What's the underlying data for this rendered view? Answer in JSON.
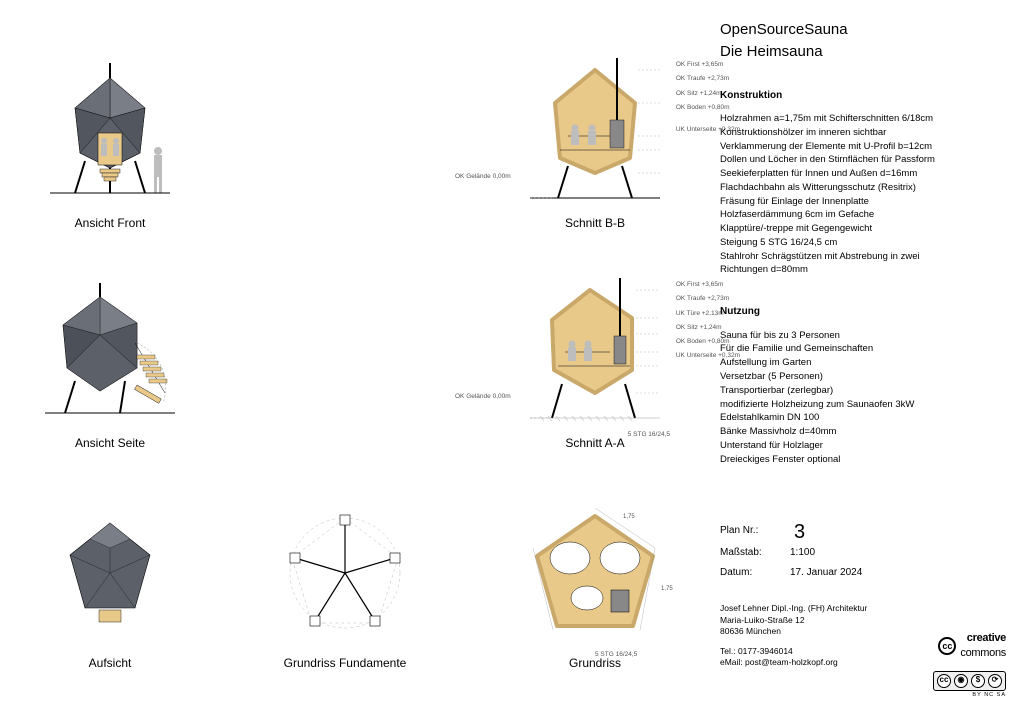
{
  "title": "OpenSourceSauna",
  "subtitle": "Die Heimsauna",
  "captions": {
    "front": "Ansicht Front",
    "side": "Ansicht Seite",
    "top": "Aufsicht",
    "sectionBB": "Schnitt B-B",
    "sectionAA": "Schnitt A-A",
    "foundation": "Grundriss Fundamente",
    "plan": "Grundriss"
  },
  "dimensions": {
    "first": "OK First +3,65m",
    "traufe": "OK Traufe +2,73m",
    "tuere": "UK Türe +2,13m",
    "sitz": "OK Sitz +1,24m",
    "boden": "OK Boden +0,80m",
    "gelaende": "OK Gelände 0,00m",
    "unterseite": "UK Unterseite +0,32m",
    "stg": "5 STG 16/24,5"
  },
  "sections": {
    "construction": {
      "heading": "Konstruktion",
      "lines": [
        "Holzrahmen a=1,75m mit Schifterschnitten 6/18cm",
        "Konstruktionshölzer im inneren sichtbar",
        "Verklammerung der Elemente mit U-Profil b=12cm",
        "Dollen und Löcher in den Stirnflächen für Passform",
        "Seekieferplatten für Innen und Außen d=16mm",
        "Flachdachbahn als Witterungsschutz (Resitrix)",
        "Fräsung für Einlage der Innenplatte",
        "Holzfaserdämmung 6cm im Gefache",
        "Klapptüre/-treppe mit Gegengewicht",
        "Steigung 5 STG 16/24,5 cm",
        "Stahlrohr Schrägstützen mit Abstrebung in zwei",
        "Richtungen d=80mm"
      ]
    },
    "usage": {
      "heading": "Nutzung",
      "lines": [
        "Sauna für bis zu 3 Personen",
        "Für die Familie und Gemeinschaften",
        "Aufstellung im Garten",
        "Versetzbar (5 Personen)",
        "Transportierbar (zerlegbar)",
        "modifizierte Holzheizung zum Saunaofen 3kW",
        "Edelstahlkamin DN 100",
        "Bänke Massivholz d=40mm",
        "Unterstand für Holzlager",
        "Dreieckiges Fenster optional"
      ]
    }
  },
  "meta": {
    "planNrLabel": "Plan Nr.:",
    "planNr": "3",
    "scaleLabel": "Maßstab:",
    "scale": "1:100",
    "dateLabel": "Datum:",
    "date": "17. Januar 2024"
  },
  "author": {
    "name": "Josef Lehner Dipl.-Ing. (FH) Architektur",
    "street": "Maria-Luiko-Straße 12",
    "city": "80636 München",
    "tel": "Tel.: 0177-3946014",
    "email": "eMail: post@team-holzkopf.org"
  },
  "cc": {
    "brand1": "creative",
    "brand2": "commons",
    "badges": [
      "cc",
      "①",
      "$",
      "⟳"
    ],
    "sub": "BY   NC   SA"
  },
  "colors": {
    "facade": "#5c6068",
    "facade_light": "#7a7e86",
    "wood": "#e8c98a",
    "wood_dark": "#c9a86a",
    "line": "#000000",
    "light_line": "#888888",
    "person": "#bdbdbd",
    "ground": "#999999"
  }
}
